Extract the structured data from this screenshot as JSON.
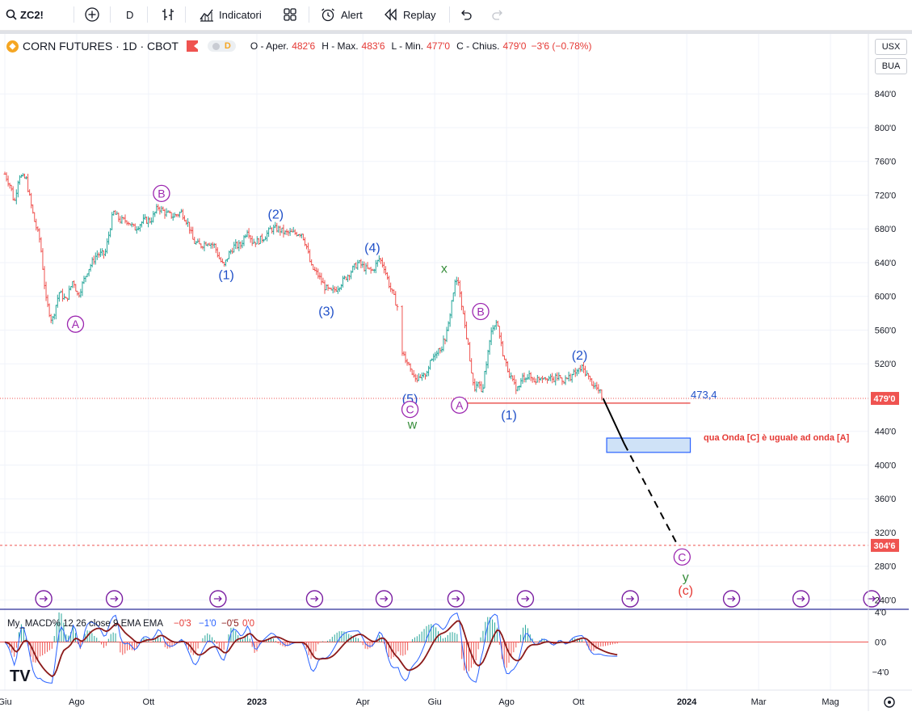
{
  "toolbar": {
    "symbol": "ZC2!",
    "interval": "D",
    "indicators_label": "Indicatori",
    "alert_label": "Alert",
    "replay_label": "Replay"
  },
  "legend": {
    "title": "CORN FUTURES · 1D · CBOT",
    "badge": "D",
    "open_label": "O - Aper.",
    "open": "482'6",
    "high_label": "H - Max.",
    "high": "483'6",
    "low_label": "L - Min.",
    "low": "477'0",
    "close_label": "C - Chius.",
    "close": "479'0",
    "change": "−3'6 (−0.78%)"
  },
  "axis_boxes": {
    "currency": "USX",
    "unit": "BUA"
  },
  "colors": {
    "up": "#26a69a",
    "down": "#ef5350",
    "wave_blue": "#2050c8",
    "wave_purple": "#9c27b0",
    "wave_green": "#388e3c",
    "wave_red": "#e53935",
    "macd": "#2962ff",
    "signal": "#8b1a1a"
  },
  "chart_data": {
    "type": "line",
    "title": "CORN FUTURES · 1D · CBOT",
    "ylim": [
      230,
      880
    ],
    "y_ticks": [
      840,
      800,
      760,
      720,
      680,
      640,
      600,
      560,
      520,
      440,
      400,
      360,
      320,
      280,
      240
    ],
    "y_tick_labels": [
      "840'0",
      "800'0",
      "760'0",
      "720'0",
      "680'0",
      "640'0",
      "600'0",
      "560'0",
      "520'0",
      "440'0",
      "400'0",
      "360'0",
      "320'0",
      "280'0",
      "240'0"
    ],
    "x_tick_labels": [
      "Giu",
      "Ago",
      "Ott",
      "2023",
      "Apr",
      "Giu",
      "Ago",
      "Ott",
      "2024",
      "Mar",
      "Mag"
    ],
    "x_ticks_days": [
      0,
      61,
      122,
      214,
      304,
      365,
      426,
      487,
      579,
      640,
      701
    ],
    "price_path": [
      [
        0,
        745
      ],
      [
        5,
        730
      ],
      [
        8,
        710
      ],
      [
        12,
        745
      ],
      [
        15,
        740
      ],
      [
        18,
        740
      ],
      [
        22,
        710
      ],
      [
        25,
        690
      ],
      [
        30,
        665
      ],
      [
        35,
        595
      ],
      [
        40,
        570
      ],
      [
        46,
        605
      ],
      [
        52,
        595
      ],
      [
        58,
        620
      ],
      [
        62,
        600
      ],
      [
        70,
        630
      ],
      [
        78,
        650
      ],
      [
        85,
        650
      ],
      [
        92,
        700
      ],
      [
        98,
        690
      ],
      [
        104,
        690
      ],
      [
        110,
        680
      ],
      [
        118,
        690
      ],
      [
        124,
        690
      ],
      [
        130,
        706
      ],
      [
        137,
        698
      ],
      [
        143,
        695
      ],
      [
        150,
        700
      ],
      [
        156,
        685
      ],
      [
        160,
        665
      ],
      [
        166,
        660
      ],
      [
        172,
        665
      ],
      [
        178,
        660
      ],
      [
        182,
        645
      ],
      [
        186,
        635
      ],
      [
        190,
        650
      ],
      [
        195,
        660
      ],
      [
        200,
        660
      ],
      [
        206,
        680
      ],
      [
        210,
        665
      ],
      [
        214,
        665
      ],
      [
        220,
        670
      ],
      [
        226,
        680
      ],
      [
        232,
        680
      ],
      [
        238,
        675
      ],
      [
        245,
        675
      ],
      [
        252,
        675
      ],
      [
        256,
        660
      ],
      [
        260,
        635
      ],
      [
        266,
        625
      ],
      [
        272,
        610
      ],
      [
        277,
        605
      ],
      [
        282,
        610
      ],
      [
        288,
        620
      ],
      [
        294,
        630
      ],
      [
        300,
        640
      ],
      [
        306,
        633
      ],
      [
        312,
        630
      ],
      [
        318,
        645
      ],
      [
        322,
        635
      ],
      [
        326,
        615
      ],
      [
        330,
        600
      ],
      [
        334,
        585
      ],
      [
        337,
        535
      ],
      [
        341,
        525
      ],
      [
        346,
        510
      ],
      [
        351,
        500
      ],
      [
        356,
        505
      ],
      [
        361,
        520
      ],
      [
        366,
        535
      ],
      [
        371,
        540
      ],
      [
        376,
        560
      ],
      [
        380,
        600
      ],
      [
        383,
        620
      ],
      [
        386,
        610
      ],
      [
        390,
        570
      ],
      [
        394,
        535
      ],
      [
        398,
        490
      ],
      [
        402,
        495
      ],
      [
        405,
        485
      ],
      [
        408,
        515
      ],
      [
        411,
        540
      ],
      [
        414,
        565
      ],
      [
        418,
        570
      ],
      [
        421,
        545
      ],
      [
        424,
        525
      ],
      [
        428,
        510
      ],
      [
        432,
        495
      ],
      [
        436,
        490
      ],
      [
        440,
        505
      ],
      [
        445,
        505
      ],
      [
        450,
        500
      ],
      [
        455,
        505
      ],
      [
        460,
        505
      ],
      [
        465,
        500
      ],
      [
        470,
        505
      ],
      [
        475,
        500
      ],
      [
        480,
        505
      ],
      [
        485,
        510
      ],
      [
        490,
        515
      ],
      [
        494,
        508
      ],
      [
        497,
        500
      ],
      [
        500,
        495
      ],
      [
        503,
        490
      ],
      [
        506,
        484
      ],
      [
        508,
        479
      ]
    ],
    "projection": [
      [
        508,
        479
      ],
      [
        526,
        425
      ],
      [
        572,
        303
      ]
    ],
    "level_473": 473.4,
    "level_304": 304.75,
    "current_price": 479,
    "target_box": {
      "x_days": [
        511,
        582
      ],
      "y": [
        415,
        432
      ]
    },
    "last_price_label": "479'0",
    "level_label": "304'6",
    "level_value_label": "473,4",
    "annotation": "qua Onda [C] è uguale ad onda [A]",
    "wave_labels": [
      {
        "text": "A",
        "day": 60,
        "price": 567,
        "style": "circle-purple"
      },
      {
        "text": "B",
        "day": 133,
        "price": 722,
        "style": "circle-purple"
      },
      {
        "text": "(1)",
        "day": 188,
        "price": 625,
        "style": "blue"
      },
      {
        "text": "(2)",
        "day": 230,
        "price": 697,
        "style": "blue"
      },
      {
        "text": "(3)",
        "day": 273,
        "price": 582,
        "style": "blue"
      },
      {
        "text": "(4)",
        "day": 312,
        "price": 657,
        "style": "blue"
      },
      {
        "text": "x",
        "day": 373,
        "price": 633,
        "style": "green"
      },
      {
        "text": "B",
        "day": 404,
        "price": 582,
        "style": "circle-purple"
      },
      {
        "text": "(2)",
        "day": 488,
        "price": 530,
        "style": "blue"
      },
      {
        "text": "(5)",
        "day": 344,
        "price": 478,
        "style": "blue"
      },
      {
        "text": "C",
        "day": 344,
        "price": 466,
        "style": "circle-purple"
      },
      {
        "text": "w",
        "day": 346,
        "price": 448,
        "style": "green"
      },
      {
        "text": "A",
        "day": 386,
        "price": 471,
        "style": "circle-purple"
      },
      {
        "text": "(1)",
        "day": 428,
        "price": 459,
        "style": "blue"
      },
      {
        "text": "C",
        "day": 575,
        "price": 291,
        "style": "circle-purple"
      },
      {
        "text": "y",
        "day": 578,
        "price": 267,
        "style": "green"
      },
      {
        "text": "(c)",
        "day": 578,
        "price": 251,
        "style": "red"
      }
    ],
    "event_markers_days": [
      33,
      93,
      181,
      263,
      322,
      383,
      442,
      531,
      617,
      676,
      736
    ]
  },
  "macd": {
    "label": "My_MACD% 12 26 close 9 EMA EMA",
    "v1": "−0'3",
    "v2": "−1'0",
    "v3": "−0'5",
    "v4": "0'0",
    "ylim": [
      -6,
      4.5
    ],
    "ticks": [
      4,
      0,
      -4
    ],
    "tick_labels": [
      "4'0",
      "0'0",
      "−4'0"
    ]
  },
  "logo": "TV"
}
